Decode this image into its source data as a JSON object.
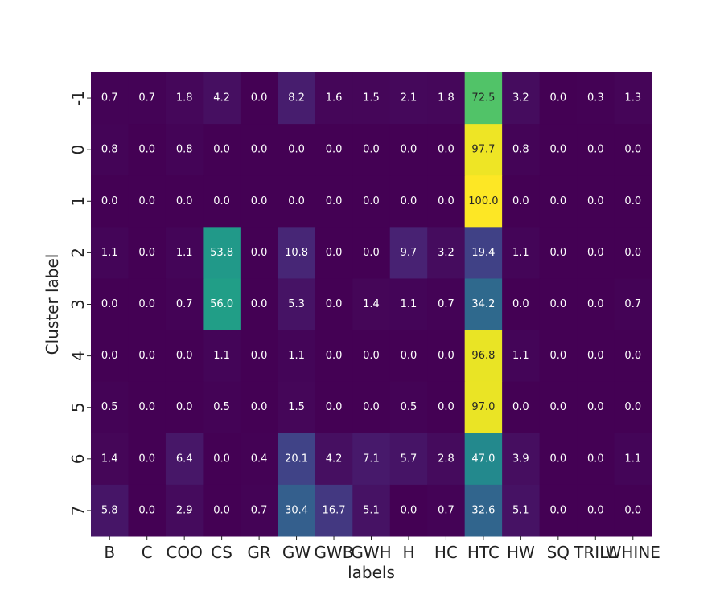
{
  "chart_data": {
    "type": "heatmap",
    "title": "",
    "xlabel": "labels",
    "ylabel": "Cluster label",
    "x_categories": [
      "B",
      "C",
      "COO",
      "CS",
      "GR",
      "GW",
      "GWB",
      "GWH",
      "H",
      "HC",
      "HTC",
      "HW",
      "SQ",
      "TRILL",
      "WHINE"
    ],
    "y_categories": [
      "-1",
      "0",
      "1",
      "2",
      "3",
      "4",
      "5",
      "6",
      "7"
    ],
    "values": [
      [
        0.7,
        0.7,
        1.8,
        4.2,
        0.0,
        8.2,
        1.6,
        1.5,
        2.1,
        1.8,
        72.5,
        3.2,
        0.0,
        0.3,
        1.3
      ],
      [
        0.8,
        0.0,
        0.8,
        0.0,
        0.0,
        0.0,
        0.0,
        0.0,
        0.0,
        0.0,
        97.7,
        0.8,
        0.0,
        0.0,
        0.0
      ],
      [
        0.0,
        0.0,
        0.0,
        0.0,
        0.0,
        0.0,
        0.0,
        0.0,
        0.0,
        0.0,
        100.0,
        0.0,
        0.0,
        0.0,
        0.0
      ],
      [
        1.1,
        0.0,
        1.1,
        53.8,
        0.0,
        10.8,
        0.0,
        0.0,
        9.7,
        3.2,
        19.4,
        1.1,
        0.0,
        0.0,
        0.0
      ],
      [
        0.0,
        0.0,
        0.7,
        56.0,
        0.0,
        5.3,
        0.0,
        1.4,
        1.1,
        0.7,
        34.2,
        0.0,
        0.0,
        0.0,
        0.7
      ],
      [
        0.0,
        0.0,
        0.0,
        1.1,
        0.0,
        1.1,
        0.0,
        0.0,
        0.0,
        0.0,
        96.8,
        1.1,
        0.0,
        0.0,
        0.0
      ],
      [
        0.5,
        0.0,
        0.0,
        0.5,
        0.0,
        1.5,
        0.0,
        0.0,
        0.5,
        0.0,
        97.0,
        0.0,
        0.0,
        0.0,
        0.0
      ],
      [
        1.4,
        0.0,
        6.4,
        0.0,
        0.4,
        20.1,
        4.2,
        7.1,
        5.7,
        2.8,
        47.0,
        3.9,
        0.0,
        0.0,
        1.1
      ],
      [
        5.8,
        0.0,
        2.9,
        0.0,
        0.7,
        30.4,
        16.7,
        5.1,
        0.0,
        0.7,
        32.6,
        5.1,
        0.0,
        0.0,
        0.0
      ]
    ],
    "value_range": [
      0,
      100
    ],
    "colormap": "viridis",
    "colorbar": false,
    "grid": false,
    "legend": "none",
    "annotations": true,
    "annotation_format": "0.1f"
  }
}
